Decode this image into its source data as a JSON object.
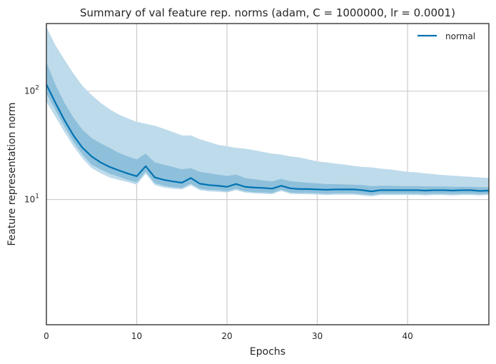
{
  "chart_data": {
    "type": "line",
    "title": "Summary of val feature rep. norms (adam, C = 1000000, lr = 0.0001)",
    "xlabel": "Epochs",
    "ylabel": "Feature representation norm",
    "xlim": [
      0,
      49
    ],
    "ylim": [
      0.7,
      420
    ],
    "yscale": "log",
    "grid": true,
    "legend_position": "top-right",
    "x_ticks": [
      0,
      10,
      20,
      30,
      40
    ],
    "x_tick_labels": [
      "0",
      "10",
      "20",
      "30",
      "40"
    ],
    "y_ticks": [
      10,
      100
    ],
    "y_tick_labels": [
      "10^1",
      "10^2"
    ],
    "colors": {
      "line": "#0072b2",
      "band_outer": "#bedbeb",
      "band_inner": "#8ec0db"
    },
    "series": [
      {
        "name": "normal",
        "x": [
          0,
          1,
          2,
          3,
          4,
          5,
          6,
          7,
          8,
          9,
          10,
          11,
          12,
          13,
          14,
          15,
          16,
          17,
          18,
          19,
          20,
          21,
          22,
          23,
          24,
          25,
          26,
          27,
          28,
          29,
          30,
          31,
          32,
          33,
          34,
          35,
          36,
          37,
          38,
          39,
          40,
          41,
          42,
          43,
          44,
          45,
          46,
          47,
          48,
          49
        ],
        "median": [
          115,
          78,
          54,
          39,
          30,
          25,
          22,
          20,
          18.6,
          17.4,
          16.4,
          20.3,
          16.0,
          15.2,
          14.7,
          14.3,
          15.8,
          14.0,
          13.6,
          13.4,
          13.1,
          13.9,
          13.1,
          12.9,
          12.8,
          12.6,
          13.4,
          12.7,
          12.5,
          12.5,
          12.4,
          12.3,
          12.4,
          12.4,
          12.4,
          12.2,
          11.9,
          12.2,
          12.2,
          12.2,
          12.2,
          12.2,
          12.1,
          12.2,
          12.2,
          12.1,
          12.2,
          12.2,
          12.0,
          12.1
        ],
        "inner_upper": [
          185,
          115,
          78,
          57,
          44,
          37,
          33,
          30,
          27,
          25,
          23.5,
          26.5,
          22,
          21,
          20,
          19,
          19.5,
          18,
          17.5,
          17,
          16.5,
          17,
          15.8,
          15.4,
          15,
          14.7,
          15.5,
          14.8,
          14.5,
          14.3,
          14.1,
          13.9,
          13.9,
          13.8,
          13.7,
          13.6,
          13.3,
          13.4,
          13.4,
          13.3,
          13.3,
          13.3,
          13.2,
          13.2,
          13.2,
          13.1,
          13.1,
          13.1,
          13.0,
          13.0
        ],
        "inner_lower": [
          95,
          67,
          47,
          34,
          26,
          21,
          19,
          17.3,
          16.3,
          15.2,
          14.4,
          18.0,
          14.2,
          13.4,
          13.0,
          12.8,
          14.0,
          12.6,
          12.3,
          12.2,
          11.9,
          12.6,
          11.9,
          11.7,
          11.6,
          11.5,
          12.3,
          11.6,
          11.5,
          11.5,
          11.4,
          11.3,
          11.4,
          11.4,
          11.4,
          11.2,
          11.0,
          11.3,
          11.3,
          11.3,
          11.3,
          11.3,
          11.2,
          11.3,
          11.3,
          11.2,
          11.3,
          11.3,
          11.2,
          11.3
        ],
        "outer_upper": [
          390,
          265,
          195,
          145,
          112,
          92,
          78,
          68,
          61,
          56,
          52,
          50,
          48,
          45,
          42,
          39,
          39,
          36,
          34,
          32,
          31,
          30,
          29.5,
          28.5,
          27.5,
          26.5,
          26,
          25,
          24.5,
          23.5,
          22.5,
          22,
          21.5,
          21,
          20.5,
          20,
          19.8,
          19.3,
          19,
          18.5,
          18,
          17.8,
          17.4,
          17.1,
          16.8,
          16.6,
          16.4,
          16.2,
          16.0,
          15.8
        ],
        "outer_lower": [
          80,
          58,
          42,
          31,
          24,
          19.5,
          17.5,
          16.0,
          15.2,
          14.5,
          13.7,
          17.3,
          13.6,
          12.9,
          12.6,
          12.4,
          13.5,
          12.2,
          11.9,
          11.8,
          11.6,
          12.2,
          11.6,
          11.4,
          11.3,
          11.2,
          12.0,
          11.3,
          11.2,
          11.2,
          11.1,
          11.0,
          11.1,
          11.1,
          11.1,
          10.9,
          10.7,
          11.0,
          11.0,
          11.0,
          11.0,
          11.0,
          10.9,
          11.0,
          11.0,
          10.9,
          11.0,
          11.0,
          10.9,
          11.0
        ]
      }
    ]
  }
}
